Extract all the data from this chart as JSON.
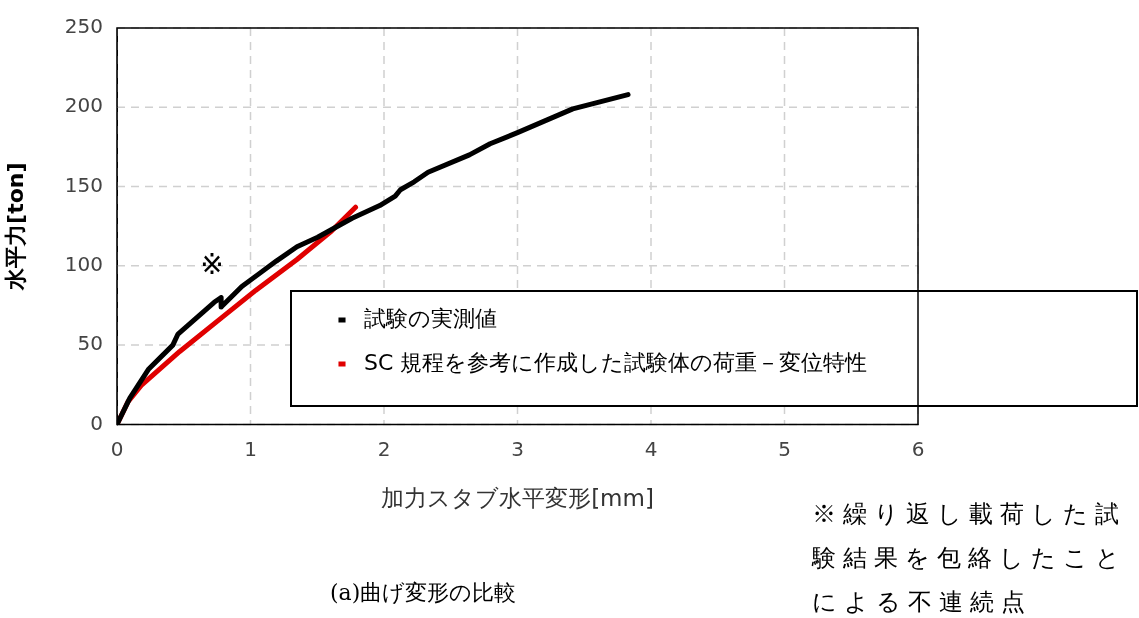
{
  "chart_data": {
    "type": "line",
    "xlabel": "加力スタブ水平変形[mm]",
    "ylabel": "水平力[ton]",
    "xlim": [
      0,
      6
    ],
    "xticks": [
      0,
      1,
      2,
      3,
      4,
      5,
      6
    ],
    "ylim": [
      0,
      250
    ],
    "yticks": [
      0,
      50,
      100,
      150,
      200,
      250
    ],
    "grid": true,
    "legend": "bottom right",
    "marker": "none",
    "line_style": "solid",
    "series": [
      {
        "name": "試験の実測値",
        "color": "#000000",
        "x": [
          0,
          0.096,
          0.238,
          0.418,
          0.457,
          0.728,
          0.78,
          0.78,
          0.935,
          1.193,
          1.348,
          1.503,
          1.761,
          1.968,
          2.084,
          2.123,
          2.226,
          2.33,
          2.64,
          2.795,
          3.0,
          3.414,
          3.828
        ],
        "values": [
          0,
          16.6,
          35,
          50,
          57,
          77,
          80,
          74,
          87,
          103,
          112,
          118,
          130,
          138,
          144,
          148,
          153,
          159,
          170,
          177,
          184,
          199,
          208
        ]
      },
      {
        "name": "SC 規程を参考に作成した試験体の荷重－変位特性",
        "color": "#e00000",
        "x": [
          0,
          0.083,
          0.186,
          0.47,
          0.78,
          1.038,
          1.348,
          1.607,
          1.787
        ],
        "values": [
          0,
          14.4,
          25,
          46,
          67,
          84.5,
          104,
          122,
          137
        ]
      }
    ],
    "annotations": [
      "※",
      "(a)曲げ変形の比較",
      "※繰り返し載荷した試験結果を包絡したことによる不連続点"
    ]
  }
}
